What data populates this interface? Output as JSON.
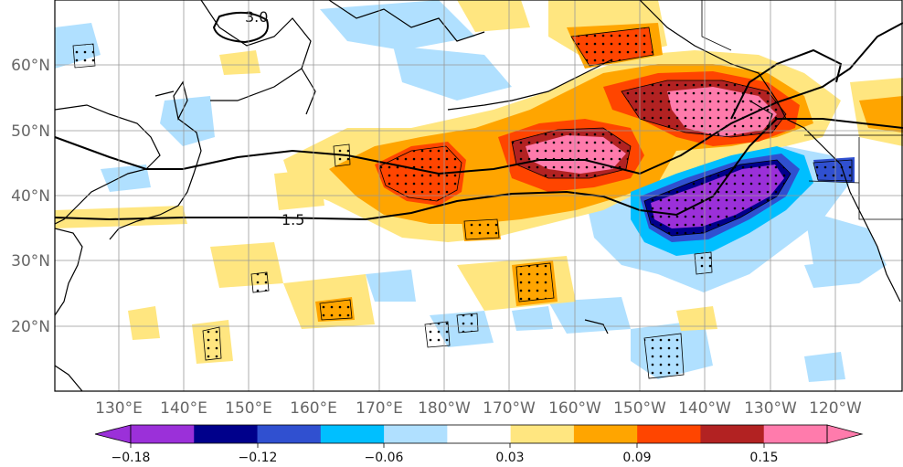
{
  "map": {
    "lat_labels": [
      "60°N",
      "50°N",
      "40°N",
      "30°N",
      "20°N"
    ],
    "lon_labels": [
      "130°E",
      "140°E",
      "150°E",
      "160°E",
      "170°E",
      "180°W",
      "170°W",
      "160°W",
      "150°W",
      "140°W",
      "130°W",
      "120°W"
    ],
    "contour_labels": [
      "3.0",
      "1.5"
    ]
  },
  "colorbar": {
    "tick_labels": [
      "−0.18",
      "−0.12",
      "−0.06",
      "0.03",
      "0.09",
      "0.15"
    ],
    "colors": [
      "#9b30d9",
      "#00008b",
      "#3050d0",
      "#00bfff",
      "#b0e0ff",
      "#ffffff",
      "#ffe680",
      "#ffa500",
      "#ff4500",
      "#b22222",
      "#ff7bac"
    ]
  }
}
